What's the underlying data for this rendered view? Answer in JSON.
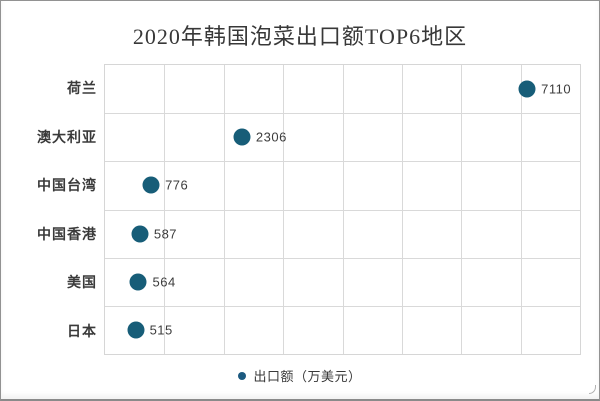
{
  "window": {
    "background": "#ffffff",
    "frame_border_color": "#8f8f8f"
  },
  "chart_data": {
    "type": "scatter",
    "title": "2020年韩国泡菜出口额TOP6地区",
    "orientation": "horizontal-categories",
    "categories": [
      "荷兰",
      "澳大利亚",
      "中国台湾",
      "中国香港",
      "美国",
      "日本"
    ],
    "values": [
      7110,
      2306,
      776,
      587,
      564,
      515
    ],
    "series_name": "出口额（万美元）",
    "xlim": [
      0,
      8000
    ],
    "x_grid_step": 1000,
    "grid": "on",
    "x_tick_labels_visible": false,
    "legend_position": "bottom",
    "colors": {
      "point": "#175d78",
      "legend_marker": "#1c5a80",
      "grid": "#d9d9d9",
      "title_text": "#383838",
      "category_text": "#3a3a3a",
      "value_text": "#3c3c3c"
    }
  },
  "legend": {
    "label": "出口额（万美元）"
  }
}
